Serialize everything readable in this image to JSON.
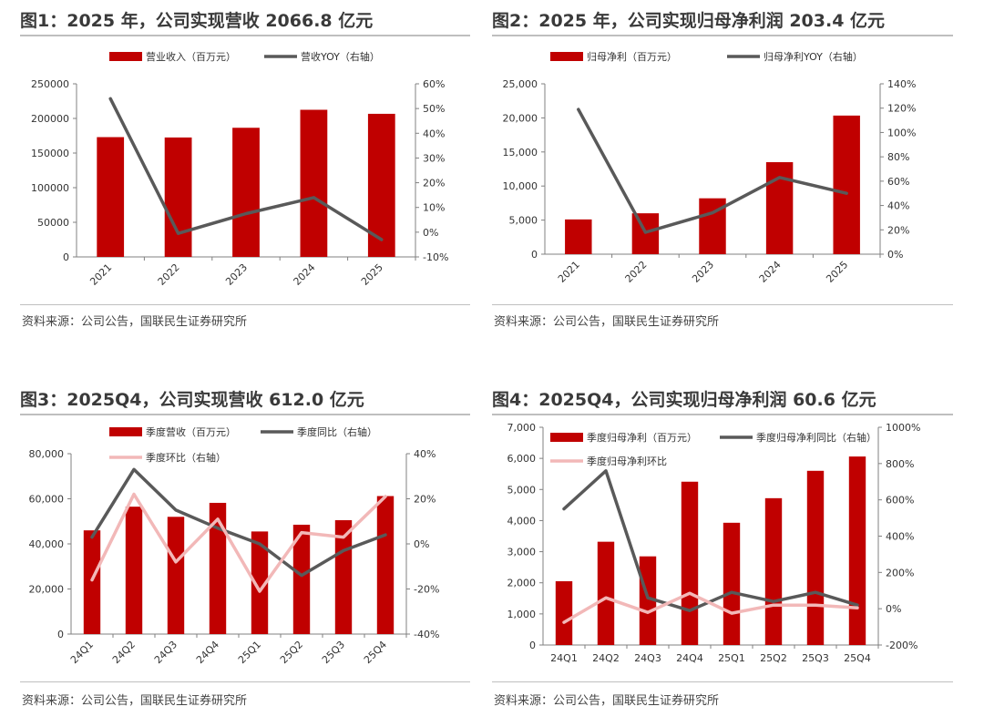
{
  "source_text": "资料来源：公司公告，国联民生证券研究所",
  "colors": {
    "bar": "#c00000",
    "line": "#595959",
    "line2": "#f2b8b8",
    "axis": "#808080",
    "tick_text": "#333333"
  },
  "chart_data": [
    {
      "type": "bar",
      "title": "图1：2025 年，公司实现营收 2066.8 亿元",
      "categories": [
        "2021",
        "2022",
        "2023",
        "2024",
        "2025"
      ],
      "x_tick_rotate": true,
      "ylim": [
        0,
        250000
      ],
      "yticks": [
        "0",
        "50000",
        "100000",
        "150000",
        "200000",
        "250000"
      ],
      "y2lim": [
        -10,
        60
      ],
      "y2ticks": [
        "-10%",
        "0%",
        "10%",
        "20%",
        "30%",
        "40%",
        "50%",
        "60%"
      ],
      "series": [
        {
          "name": "营业收入（百万元）",
          "kind": "bar",
          "axis": "left",
          "values": [
            173000,
            172500,
            186500,
            212500,
            206680
          ]
        },
        {
          "name": "营收YOY（右轴）",
          "kind": "line",
          "axis": "right",
          "color": "#595959",
          "values": [
            54,
            -0.5,
            7.5,
            14,
            -3
          ]
        }
      ],
      "legend": "top"
    },
    {
      "type": "bar",
      "title": "图2：2025 年，公司实现归母净利润 203.4 亿元",
      "categories": [
        "2021",
        "2022",
        "2023",
        "2024",
        "2025"
      ],
      "x_tick_rotate": true,
      "ylim": [
        0,
        25000
      ],
      "yticks": [
        "0",
        "5,000",
        "10,000",
        "15,000",
        "20,000",
        "25,000"
      ],
      "y2lim": [
        0,
        140
      ],
      "y2ticks": [
        "0%",
        "20%",
        "40%",
        "60%",
        "80%",
        "100%",
        "120%",
        "140%"
      ],
      "series": [
        {
          "name": "归母净利（百万元）",
          "kind": "bar",
          "axis": "left",
          "values": [
            5100,
            6000,
            8200,
            13500,
            20340
          ]
        },
        {
          "name": "归母净利YOY（右轴）",
          "kind": "line",
          "axis": "right",
          "color": "#595959",
          "values": [
            119,
            18,
            34,
            63,
            50
          ]
        }
      ],
      "legend": "top"
    },
    {
      "type": "bar",
      "title": "图3：2025Q4，公司实现营收 612.0 亿元",
      "categories": [
        "24Q1",
        "24Q2",
        "24Q3",
        "24Q4",
        "25Q1",
        "25Q2",
        "25Q3",
        "25Q4"
      ],
      "x_tick_rotate": true,
      "ylim": [
        0,
        80000
      ],
      "yticks": [
        "0",
        "20,000",
        "40,000",
        "60,000",
        "80,000"
      ],
      "y2lim": [
        -40,
        40
      ],
      "y2ticks": [
        "-40%",
        "-20%",
        "0%",
        "20%",
        "40%"
      ],
      "series": [
        {
          "name": "季度营收（百万元）",
          "kind": "bar",
          "axis": "left",
          "values": [
            46000,
            56500,
            52000,
            58200,
            45500,
            48500,
            50500,
            61200
          ]
        },
        {
          "name": "季度同比（右轴）",
          "kind": "line",
          "axis": "right",
          "color": "#595959",
          "values": [
            3,
            33,
            15,
            7,
            0,
            -14,
            -3,
            4
          ]
        },
        {
          "name": "季度环比（右轴）",
          "kind": "line",
          "axis": "right",
          "color": "#f2b8b8",
          "values": [
            -16,
            22,
            -8,
            11,
            -21,
            5,
            3,
            21
          ]
        }
      ],
      "legend": "top"
    },
    {
      "type": "bar",
      "title": "图4：2025Q4，公司实现归母净利润 60.6 亿元",
      "categories": [
        "24Q1",
        "24Q2",
        "24Q3",
        "24Q4",
        "25Q1",
        "25Q2",
        "25Q3",
        "25Q4"
      ],
      "x_tick_rotate": false,
      "ylim": [
        0,
        7000
      ],
      "yticks": [
        "0",
        "1,000",
        "2,000",
        "3,000",
        "4,000",
        "5,000",
        "6,000",
        "7,000"
      ],
      "y2lim": [
        -200,
        1000
      ],
      "y2ticks": [
        "-200%",
        "0%",
        "200%",
        "400%",
        "600%",
        "800%",
        "1000%"
      ],
      "series": [
        {
          "name": "季度归母净利（百万元）",
          "kind": "bar",
          "axis": "left",
          "values": [
            2050,
            3320,
            2850,
            5250,
            3930,
            4720,
            5600,
            6060
          ]
        },
        {
          "name": "季度归母净利同比（右轴）",
          "kind": "line",
          "axis": "right",
          "color": "#595959",
          "values": [
            550,
            760,
            60,
            -10,
            90,
            40,
            90,
            20
          ]
        },
        {
          "name": "季度归母净利环比",
          "kind": "line",
          "axis": "right",
          "color": "#f2b8b8",
          "values": [
            -75,
            60,
            -20,
            85,
            -25,
            20,
            20,
            5
          ]
        }
      ],
      "legend": "top"
    }
  ]
}
